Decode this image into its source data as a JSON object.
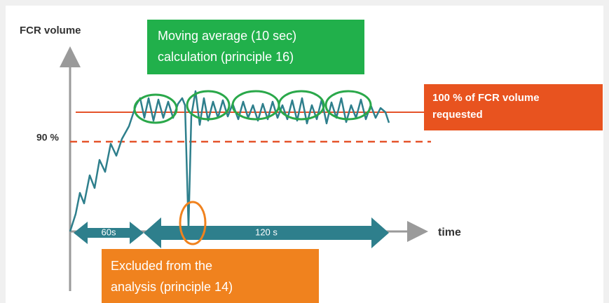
{
  "y_axis_label": "FCR volume",
  "moving_average_box": {
    "lines": [
      "Moving average  (10 sec)",
      "calculation (principle 16)"
    ]
  },
  "requested_box": {
    "lines": [
      "100 % of FCR volume",
      "requested"
    ]
  },
  "threshold_label": "90 %",
  "interval_labels": [
    "60s",
    "120 s"
  ],
  "x_axis_label": "time",
  "excluded_box": {
    "lines": [
      "Excluded from the",
      "analysis (principle 14)"
    ]
  }
}
